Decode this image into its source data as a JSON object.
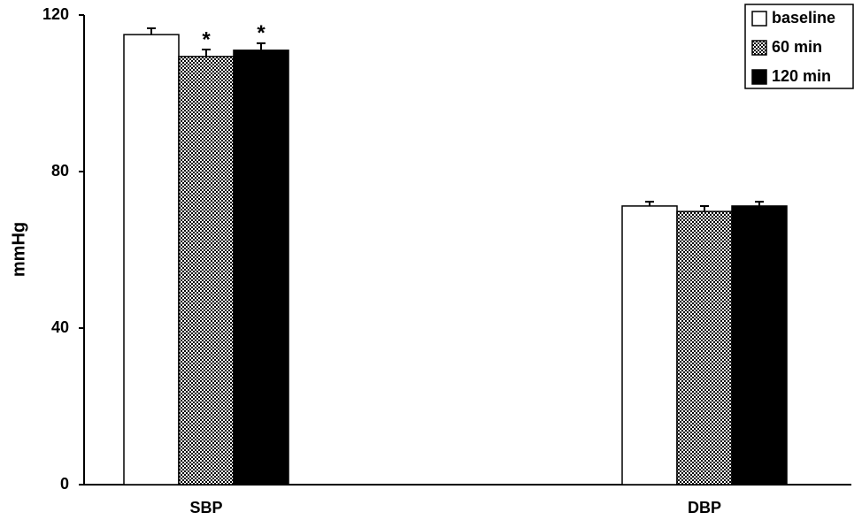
{
  "chart_data": {
    "type": "bar",
    "categories": [
      "SBP",
      "DBP"
    ],
    "y_label": "mmHg",
    "ylim": [
      0,
      120
    ],
    "yticks": [
      0,
      40,
      80,
      120
    ],
    "legend": "top-right",
    "series": [
      {
        "name": "baseline",
        "color": "#ffffff",
        "values": [
          115.0,
          71.2
        ],
        "errors": [
          1.6,
          1.1
        ]
      },
      {
        "name": "60 min",
        "color": "#000000",
        "fill": "checker",
        "values": [
          109.4,
          69.8
        ],
        "errors": [
          1.8,
          1.4
        ],
        "significance": [
          "*",
          null
        ]
      },
      {
        "name": "120 min",
        "color": "#000000",
        "values": [
          111.0,
          71.2
        ],
        "errors": [
          1.8,
          1.1
        ],
        "significance": [
          "*",
          null
        ]
      }
    ]
  }
}
